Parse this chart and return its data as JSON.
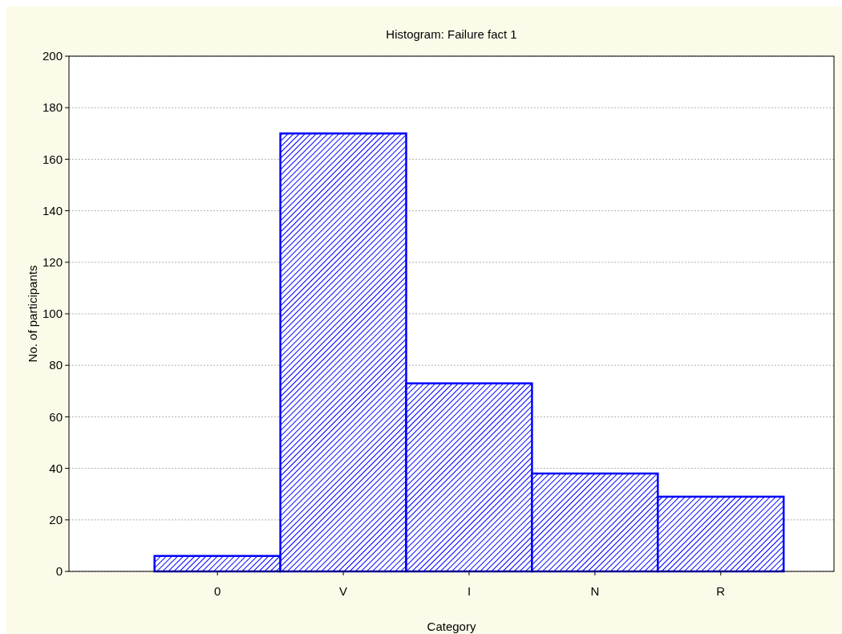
{
  "chart_data": {
    "type": "bar",
    "title": "Histogram: Failure fact 1",
    "xlabel": "Category",
    "ylabel": "No. of participants",
    "categories": [
      "0",
      "V",
      "I",
      "N",
      "R"
    ],
    "values": [
      6,
      170,
      73,
      38,
      29
    ],
    "color": "#0000ff",
    "ylim": [
      0,
      200
    ],
    "yticks": [
      0,
      20,
      40,
      60,
      80,
      100,
      120,
      140,
      160,
      180,
      200
    ],
    "grid": "y"
  }
}
